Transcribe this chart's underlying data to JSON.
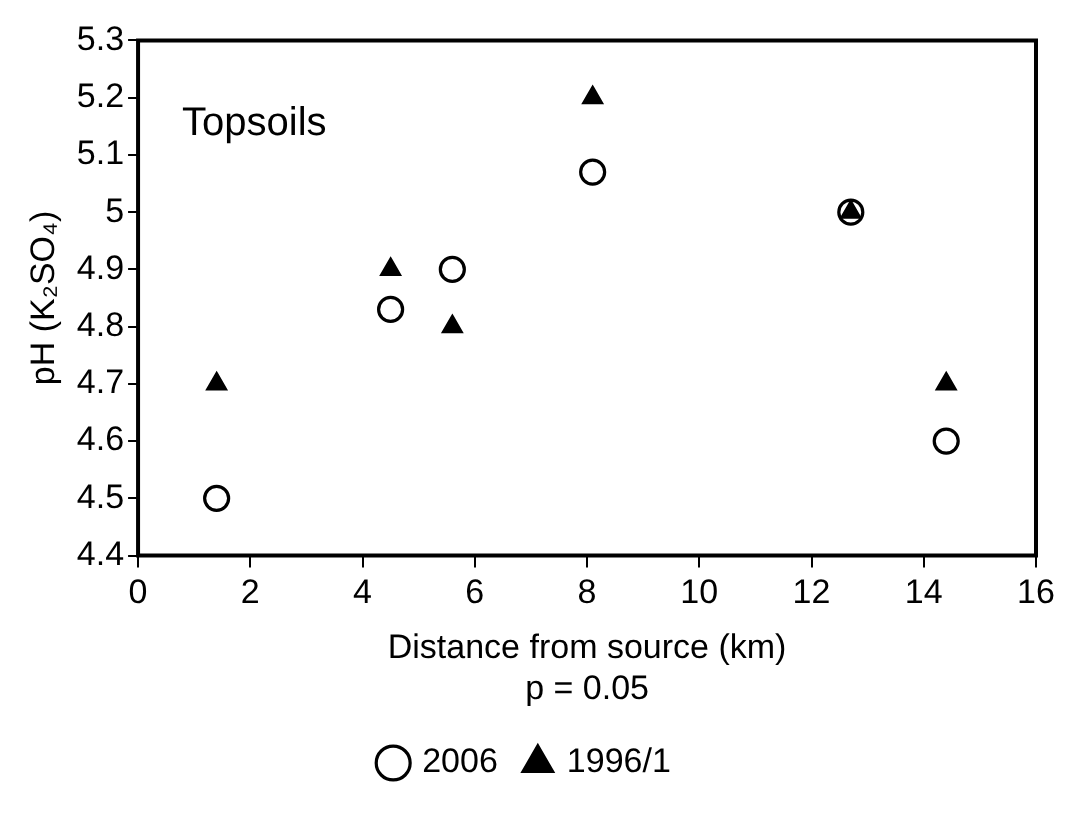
{
  "chart_data": {
    "type": "scatter",
    "xlabel": "Distance from source (km)",
    "ylabel": "pH (K₂SO₄)",
    "annotations": [
      "Topsoils",
      "p = 0.05"
    ],
    "x": [
      1.4,
      4.5,
      5.6,
      8.1,
      12.7,
      14.4
    ],
    "series": [
      {
        "name": "2006",
        "color": "#000000",
        "marker": "circle",
        "values": [
          4.5,
          4.83,
          4.9,
          5.07,
          5.0,
          4.6
        ]
      },
      {
        "name": "1996/1",
        "color": "#000000",
        "marker": "triangle",
        "values": [
          4.7,
          4.9,
          4.8,
          5.2,
          5.0,
          4.7
        ]
      }
    ],
    "xlim": [
      0,
      16
    ],
    "xticks": [
      0,
      2,
      4,
      6,
      8,
      10,
      12,
      14,
      16
    ],
    "ylim": [
      4.4,
      5.3
    ],
    "yticks": [
      4.4,
      4.5,
      4.6,
      4.7,
      4.8,
      4.9,
      5.0,
      5.1,
      5.2,
      5.3
    ],
    "grid": false,
    "legend": "bottom"
  }
}
